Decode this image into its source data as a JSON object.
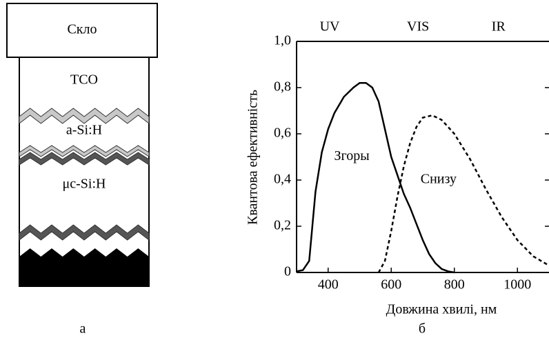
{
  "diagram": {
    "glass": "Скло",
    "layers": [
      "TCO",
      "a-Si:H",
      "μc-Si:H"
    ],
    "label": "а"
  },
  "chart_data": {
    "type": "line",
    "panel_label": "б",
    "x_label": "Довжина хвилі, нм",
    "y_label": "Квантова ефективність",
    "xlim": [
      300,
      1100
    ],
    "xticks": [
      400,
      600,
      800,
      1000
    ],
    "ylim": [
      0,
      1
    ],
    "yticks": [
      0,
      {
        "value": 0.2,
        "label": "0,2"
      },
      {
        "value": 0.4,
        "label": "0,4"
      },
      {
        "value": 0.6,
        "label": "0,6"
      },
      {
        "value": 0.8,
        "label": "0,8"
      },
      {
        "value": 1,
        "label": "1,0"
      }
    ],
    "annotations": [
      {
        "text": "UV",
        "x": 405,
        "y": 1.06
      },
      {
        "text": "VIS",
        "x": 685,
        "y": 1.06
      },
      {
        "text": "IR",
        "x": 940,
        "y": 1.06
      },
      {
        "text": "Згоры",
        "x": 475,
        "y": 0.5
      },
      {
        "text": "Снизу",
        "x": 750,
        "y": 0.4
      }
    ],
    "series": [
      {
        "name": "Згоры",
        "color": "#000000",
        "dashed": false,
        "x": [
          300,
          320,
          340,
          350,
          360,
          380,
          400,
          420,
          450,
          480,
          500,
          520,
          540,
          560,
          580,
          600,
          620,
          640,
          660,
          680,
          700,
          720,
          740,
          760,
          780,
          800
        ],
        "values": [
          0.005,
          0.01,
          0.05,
          0.2,
          0.35,
          0.52,
          0.62,
          0.69,
          0.76,
          0.8,
          0.82,
          0.82,
          0.8,
          0.74,
          0.62,
          0.5,
          0.42,
          0.34,
          0.28,
          0.21,
          0.14,
          0.08,
          0.04,
          0.015,
          0.005,
          0
        ]
      },
      {
        "name": "Снизу",
        "color": "#000000",
        "dashed": true,
        "x": [
          560,
          580,
          600,
          620,
          640,
          660,
          680,
          700,
          730,
          760,
          800,
          850,
          900,
          950,
          1000,
          1050,
          1100
        ],
        "values": [
          0,
          0.05,
          0.18,
          0.33,
          0.46,
          0.56,
          0.63,
          0.67,
          0.68,
          0.66,
          0.6,
          0.49,
          0.36,
          0.24,
          0.14,
          0.07,
          0.03
        ]
      }
    ]
  }
}
